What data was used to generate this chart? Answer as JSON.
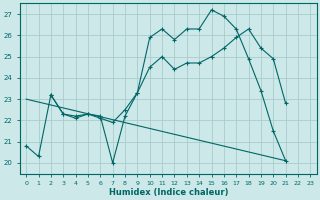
{
  "xlabel": "Humidex (Indice chaleur)",
  "bg_color": "#cce8e8",
  "grid_color": "#aacccc",
  "line_color": "#006666",
  "xlim": [
    -0.5,
    23.5
  ],
  "ylim": [
    19.5,
    27.5
  ],
  "yticks": [
    20,
    21,
    22,
    23,
    24,
    25,
    26,
    27
  ],
  "xticks": [
    0,
    1,
    2,
    3,
    4,
    5,
    6,
    7,
    8,
    9,
    10,
    11,
    12,
    13,
    14,
    15,
    16,
    17,
    18,
    19,
    20,
    21,
    22,
    23
  ],
  "series1_x": [
    0,
    1,
    2,
    3,
    4,
    5,
    6,
    7,
    8,
    9,
    10,
    11,
    12,
    13,
    14,
    15,
    16,
    17,
    18,
    19,
    20,
    21
  ],
  "series1_y": [
    20.8,
    20.3,
    23.2,
    22.3,
    22.2,
    22.3,
    22.2,
    20.0,
    22.2,
    23.3,
    25.9,
    26.3,
    25.8,
    26.3,
    26.3,
    27.2,
    26.9,
    26.3,
    24.9,
    23.4,
    21.5,
    20.1
  ],
  "series2_x": [
    2,
    3,
    4,
    5,
    6,
    7,
    8,
    9,
    10,
    11,
    12,
    13,
    14,
    15,
    16,
    17,
    18,
    19,
    20,
    21
  ],
  "series2_y": [
    23.2,
    22.3,
    22.1,
    22.3,
    22.1,
    21.9,
    22.5,
    23.3,
    24.5,
    25.0,
    24.4,
    24.7,
    24.7,
    25.0,
    25.4,
    25.9,
    26.3,
    25.4,
    24.9,
    22.8
  ],
  "series3_x": [
    0,
    21
  ],
  "series3_y": [
    23.0,
    20.1
  ]
}
